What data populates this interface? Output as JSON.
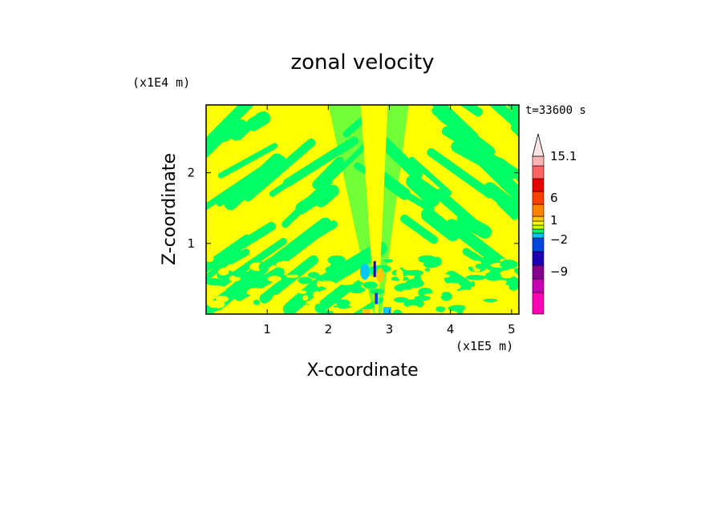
{
  "chart_data": {
    "type": "heatmap",
    "title": "zonal velocity",
    "xlabel": "X-coordinate",
    "ylabel": "Z-coordinate",
    "x_unit": "(x1E5 m)",
    "y_unit": "(x1E4 m)",
    "time_label": "t=33600 s",
    "xlim": [
      0,
      5.12
    ],
    "ylim": [
      0,
      2.96
    ],
    "x_ticks": [
      1,
      2,
      3,
      4,
      5
    ],
    "y_ticks": [
      1,
      2
    ],
    "colorbar": {
      "levels": [
        "-13",
        "-11",
        "-9",
        "-7",
        "-5",
        "-2",
        "-1",
        "0",
        "1",
        "2",
        "4",
        "6",
        "8",
        "11",
        "15.1"
      ],
      "labels": [
        "15.1",
        "6",
        "1",
        "-2",
        "-9"
      ],
      "colors": [
        "#ff00b4",
        "#c800b4",
        "#82008c",
        "#1e00b4",
        "#0046dc",
        "#00c8ff",
        "#00ff64",
        "#c8ff00",
        "#ffff00",
        "#ffc800",
        "#ff8200",
        "#ff4000",
        "#e60000",
        "#ff6464",
        "#ffb4b4",
        "#ffe6e6"
      ],
      "extend_max": true
    },
    "field_description_colors": {
      "background": "#ffff00",
      "negative": "#00ff64",
      "strong_negative": "#00c8ff",
      "positive": "#ffc800"
    }
  }
}
